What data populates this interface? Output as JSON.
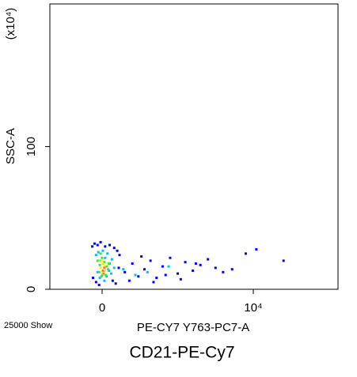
{
  "chart_data": {
    "type": "scatter",
    "title": "CD21-PE-Cy7",
    "x_label": "PE-CY7 Y763-PC7-A",
    "y_label": "SSC-A",
    "y_multiplier": "(x10⁴)",
    "event_count": "25000 Show",
    "xlim": [
      -3455,
      15602
    ],
    "ylim": [
      0,
      200
    ],
    "xticks": [
      0,
      {
        "value": 10000,
        "label": "10⁴"
      }
    ],
    "yticks": [
      0,
      100
    ],
    "series": [
      {
        "color": "#0000ff",
        "x": [
          -650,
          -500,
          -300,
          -100,
          200,
          500,
          800,
          1000,
          1150,
          -600,
          -400,
          700,
          900,
          -200,
          1100,
          1500,
          2000,
          2400,
          2800,
          3200,
          3600,
          4000,
          4500,
          5000,
          5500,
          6000,
          6500,
          7000,
          7500,
          8000,
          8600,
          1800,
          2600,
          3400,
          4200,
          5200,
          6200,
          9500,
          10200,
          12000
        ],
        "values": [
          30,
          32,
          31,
          33,
          30,
          31,
          29,
          27,
          24,
          8,
          5,
          6,
          4,
          3,
          15,
          12,
          18,
          9,
          14,
          20,
          8,
          16,
          22,
          11,
          19,
          13,
          17,
          21,
          15,
          12,
          14,
          6,
          23,
          5,
          10,
          7,
          18,
          25,
          28,
          20
        ]
      },
      {
        "color": "#00c0ff",
        "x": [
          -400,
          -250,
          -100,
          50,
          200,
          350,
          500,
          650,
          800,
          -300,
          -150,
          0,
          150,
          300,
          450,
          600,
          1400,
          2200,
          3000,
          4400
        ],
        "values": [
          24,
          26,
          20,
          27,
          22,
          25,
          18,
          21,
          15,
          12,
          8,
          10,
          6,
          9,
          13,
          11,
          14,
          10,
          12,
          16
        ]
      },
      {
        "color": "#40e040",
        "x": [
          -300,
          -150,
          0,
          150,
          300,
          450,
          -200,
          -50,
          100,
          250,
          400,
          -100
        ],
        "values": [
          20,
          17,
          22,
          19,
          16,
          18,
          12,
          9,
          13,
          10,
          14,
          25
        ]
      },
      {
        "color": "#f0f000",
        "x": [
          -100,
          50,
          200,
          0,
          150,
          -50
        ],
        "values": [
          15,
          18,
          13,
          11,
          16,
          20
        ]
      },
      {
        "color": "#ff8000",
        "x": [
          50,
          150,
          100
        ],
        "values": [
          13,
          15,
          11
        ]
      }
    ]
  }
}
